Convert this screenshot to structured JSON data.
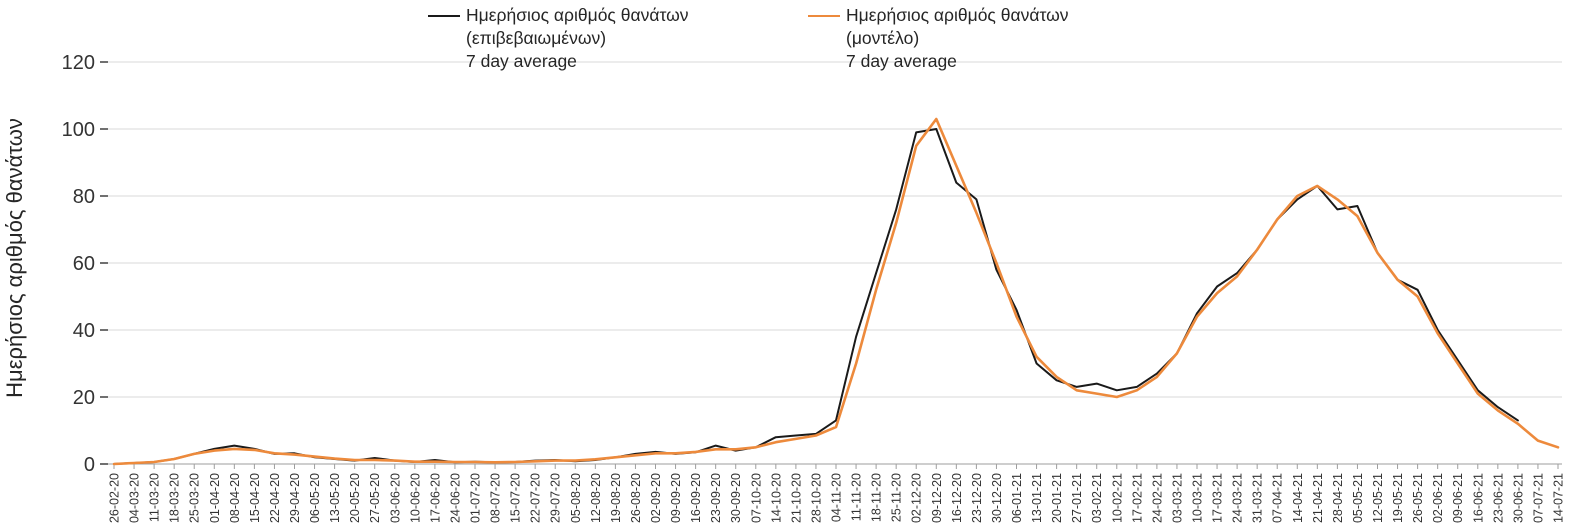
{
  "chart_data": {
    "type": "line",
    "title": "",
    "xlabel": "",
    "ylabel": "Ημερήσιος αριθμός θανάτων",
    "ylim": [
      0,
      120
    ],
    "yticks": [
      0,
      20,
      40,
      60,
      80,
      100,
      120
    ],
    "grid": "horizontal",
    "legend_position": "top",
    "categories": [
      "26-02-20",
      "04-03-20",
      "11-03-20",
      "18-03-20",
      "25-03-20",
      "01-04-20",
      "08-04-20",
      "15-04-20",
      "22-04-20",
      "29-04-20",
      "06-05-20",
      "13-05-20",
      "20-05-20",
      "27-05-20",
      "03-06-20",
      "10-06-20",
      "17-06-20",
      "24-06-20",
      "01-07-20",
      "08-07-20",
      "15-07-20",
      "22-07-20",
      "29-07-20",
      "05-08-20",
      "12-08-20",
      "19-08-20",
      "26-08-20",
      "02-09-20",
      "09-09-20",
      "16-09-20",
      "23-09-20",
      "30-09-20",
      "07-10-20",
      "14-10-20",
      "21-10-20",
      "28-10-20",
      "04-11-20",
      "11-11-20",
      "18-11-20",
      "25-11-20",
      "02-12-20",
      "09-12-20",
      "16-12-20",
      "23-12-20",
      "30-12-20",
      "06-01-21",
      "13-01-21",
      "20-01-21",
      "27-01-21",
      "03-02-21",
      "10-02-21",
      "17-02-21",
      "24-02-21",
      "03-03-21",
      "10-03-21",
      "17-03-21",
      "24-03-21",
      "31-03-21",
      "07-04-21",
      "14-04-21",
      "21-04-21",
      "28-04-21",
      "05-05-21",
      "12-05-21",
      "19-05-21",
      "26-05-21",
      "02-06-21",
      "09-06-21",
      "16-06-21",
      "23-06-21",
      "30-06-21",
      "07-07-21",
      "14-07-21"
    ],
    "series": [
      {
        "name": "Ημερήσιος αριθμός θανάτων (επιβεβαιωμένων) 7 day average",
        "color": "#1A1A1A",
        "values": [
          0,
          0.3,
          0.6,
          1.5,
          3,
          4.5,
          5.5,
          4.5,
          3,
          3.2,
          2,
          1.5,
          1,
          1.8,
          1,
          0.6,
          1.2,
          0.5,
          0.7,
          0.5,
          0.6,
          1,
          1.2,
          0.8,
          1.2,
          2,
          3,
          3.6,
          3,
          3.5,
          5.5,
          4,
          5,
          8,
          8.5,
          9,
          13,
          38,
          57,
          76,
          99,
          100,
          84,
          79,
          58,
          46,
          30,
          25,
          23,
          24,
          22,
          23,
          27,
          33,
          45,
          53,
          57,
          64,
          73,
          79,
          83,
          76,
          77,
          63,
          55,
          52,
          40,
          31,
          22,
          17,
          13,
          null,
          null
        ]
      },
      {
        "name": "Ημερήσιος αριθμός θανάτων (μοντέλο) 7 day average",
        "color": "#ED8A3C",
        "values": [
          0,
          0.3,
          0.6,
          1.5,
          3,
          4,
          4.5,
          4.2,
          3.2,
          2.8,
          2.2,
          1.6,
          1.2,
          1.2,
          1,
          0.7,
          0.7,
          0.6,
          0.6,
          0.5,
          0.6,
          0.8,
          1,
          1,
          1.4,
          2,
          2.6,
          3.2,
          3.2,
          3.6,
          4.4,
          4.4,
          5,
          6.5,
          7.5,
          8.5,
          11,
          30,
          52,
          72,
          95,
          103,
          89,
          75,
          60,
          44,
          32,
          26,
          22,
          21,
          20,
          22,
          26,
          33,
          44,
          51,
          56,
          64,
          73,
          80,
          83,
          79,
          74,
          63,
          55,
          50,
          39,
          30,
          21,
          16,
          12,
          7,
          5
        ]
      }
    ]
  },
  "legend": {
    "entries": [
      {
        "label": "Ημερήσιος αριθμός θανάτων\n(επιβεβαιωμένων)\n7 day average",
        "color": "#1A1A1A"
      },
      {
        "label": "Ημερήσιος αριθμός θανάτων\n(μοντέλο)\n7 day average",
        "color": "#ED8A3C"
      }
    ]
  }
}
